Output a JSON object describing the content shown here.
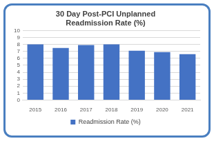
{
  "chart_data": {
    "type": "bar",
    "title": [
      "30 Day Post-PCI Unplanned",
      "Readmission Rate (%)"
    ],
    "categories": [
      "2015",
      "2016",
      "2017",
      "2018",
      "2019",
      "2020",
      "2021"
    ],
    "series": [
      {
        "name": "Readmission Rate (%)",
        "color": "#4472c4",
        "values": [
          8.0,
          7.5,
          7.9,
          8.0,
          7.1,
          6.9,
          6.6
        ]
      }
    ],
    "ylim": [
      0,
      10
    ],
    "yticks": [
      0,
      1,
      2,
      3,
      4,
      5,
      6,
      7,
      8,
      9,
      10
    ],
    "grid": true,
    "legend": "bottom"
  }
}
